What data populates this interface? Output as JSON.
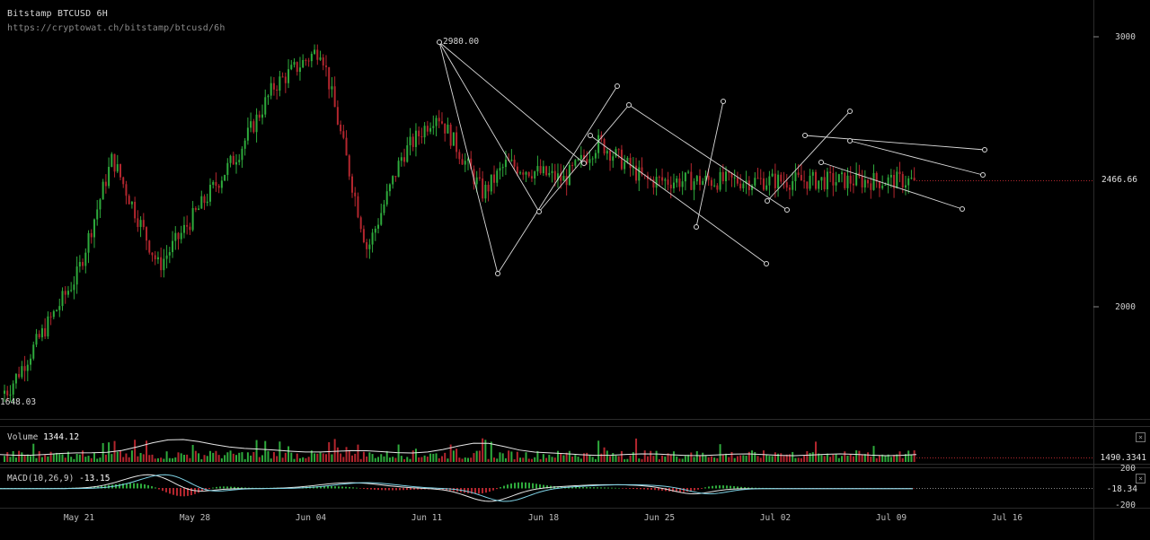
{
  "header": {
    "title": "Bitstamp BTCUSD 6H",
    "url": "https://cryptowat.ch/bitstamp/btcusd/6h"
  },
  "price_axis": {
    "ticks": [
      "3000",
      "2000"
    ],
    "last_price": "2466.66",
    "high_label": "2980.00",
    "low_label": "1648.03"
  },
  "volume_panel": {
    "label": "Volume",
    "value": "1344.12",
    "axis_value": "1490.3341"
  },
  "macd_panel": {
    "label": "MACD(10,26,9)",
    "value": "-13.15",
    "ticks": [
      "200",
      "-18.34",
      "-200"
    ]
  },
  "time_axis": {
    "labels": [
      "May 21",
      "May 28",
      "Jun 04",
      "Jun 11",
      "Jun 18",
      "Jun 25",
      "Jul 02",
      "Jul 09",
      "Jul 16"
    ]
  },
  "colors": {
    "up": "#2eaa3c",
    "down": "#b3262e",
    "background": "#000000",
    "grid": "#2b2b2b",
    "drawing": "#d9d9d9",
    "ma_line": "#e6e6e6",
    "signal_line": "#7fd3e6"
  },
  "chart_data": {
    "type": "candlestick",
    "title": "Bitstamp BTCUSD 6H",
    "ylim": [
      1648.03,
      2980.0
    ],
    "ticks": [
      2000,
      3000
    ],
    "last": 2466.66,
    "high": 2980.0,
    "low": 1648.03,
    "interval": "6H",
    "x_range": [
      "May 21",
      "Jul 16"
    ],
    "key_closes": [
      {
        "date": "May 15",
        "price": 1690
      },
      {
        "date": "May 21",
        "price": 2120
      },
      {
        "date": "May 24",
        "price": 2550
      },
      {
        "date": "May 28",
        "price": 2150
      },
      {
        "date": "Jun 04",
        "price": 2580
      },
      {
        "date": "Jun 07",
        "price": 2820
      },
      {
        "date": "Jun 11",
        "price": 2960
      },
      {
        "date": "Jun 15",
        "price": 2210
      },
      {
        "date": "Jun 18",
        "price": 2560
      },
      {
        "date": "Jun 21",
        "price": 2720
      },
      {
        "date": "Jun 25",
        "price": 2420
      },
      {
        "date": "Jun 27",
        "price": 2530
      },
      {
        "date": "Jul 02",
        "price": 2470
      },
      {
        "date": "Jul 05",
        "price": 2610
      },
      {
        "date": "Jul 09",
        "price": 2466.66
      }
    ],
    "volume": {
      "last": 1344.12,
      "axis": 1490.3341
    },
    "macd": {
      "params": "10,26,9",
      "last": -13.15,
      "signal": -18.34,
      "ylim": [
        -200,
        200
      ]
    }
  }
}
